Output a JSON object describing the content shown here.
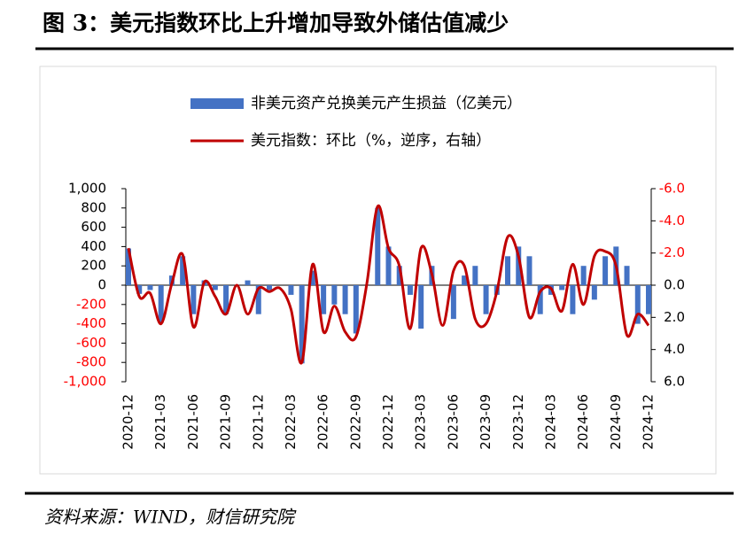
{
  "chart_data": {
    "type": "bar_line",
    "title": "图 3：美元指数环比上升增加导致外储估值减少",
    "source": "资料来源：WIND，财信研究院",
    "categories": [
      "2020-12",
      null,
      null,
      "2021-03",
      null,
      null,
      "2021-06",
      null,
      null,
      "2021-09",
      null,
      null,
      "2021-12",
      null,
      null,
      "2022-03",
      null,
      null,
      "2022-06",
      null,
      null,
      "2022-09",
      null,
      null,
      "2022-12",
      null,
      null,
      "2023-03",
      null,
      null,
      "2023-06",
      null,
      null,
      "2023-09",
      null,
      null,
      "2023-12",
      null,
      null,
      "2024-03",
      null,
      null,
      "2024-06",
      null,
      null,
      "2024-09",
      null,
      null,
      "2024-12"
    ],
    "series": [
      {
        "name": "非美元资产兑换美元产生损益（亿美元）",
        "color": "#4472c4",
        "kind": "bar",
        "values": [
          380,
          -90,
          -50,
          -390,
          100,
          300,
          -300,
          50,
          -50,
          -300,
          0,
          50,
          -300,
          -50,
          0,
          -100,
          -810,
          150,
          -300,
          -200,
          -300,
          -500,
          0,
          800,
          400,
          200,
          -100,
          -450,
          200,
          0,
          -350,
          100,
          200,
          -300,
          -100,
          300,
          400,
          300,
          -300,
          -100,
          -50,
          -300,
          200,
          -150,
          300,
          400,
          200,
          -400,
          -300
        ]
      },
      {
        "name": "美元指数：环比（%，逆序，右轴）",
        "color": "#c00000",
        "kind": "line",
        "axis": "y2",
        "values": [
          -2.3,
          0.7,
          0.5,
          2.4,
          -0.1,
          -1.9,
          2.6,
          -0.2,
          0.7,
          1.8,
          0,
          1.8,
          0.2,
          0.4,
          0.2,
          1.5,
          4.8,
          -1.3,
          2.9,
          1.3,
          2.9,
          3.2,
          -0.1,
          -4.9,
          -2.3,
          -1.2,
          2.7,
          -2.3,
          -0.7,
          2.5,
          -0.9,
          -1.2,
          2.1,
          2.4,
          0.4,
          -3.0,
          -1.8,
          2.0,
          0.4,
          0.2,
          1.6,
          -1.3,
          1.2,
          -1.8,
          -2.1,
          -1.2,
          3.1,
          1.8,
          2.5
        ]
      }
    ],
    "ylim": [
      -1000,
      1000
    ],
    "yticks": [
      {
        "value": -1000,
        "label": "-1,000"
      },
      -800,
      -600,
      -400,
      -200,
      0,
      200,
      400,
      600,
      800,
      {
        "value": 1000,
        "label": "1,000"
      }
    ],
    "y2lim": [
      6,
      -6
    ],
    "y2ticks": [
      {
        "value": 6,
        "label": "6.0"
      },
      {
        "value": 4,
        "label": "4.0"
      },
      {
        "value": 2,
        "label": "2.0"
      },
      {
        "value": 0,
        "label": "0.0"
      },
      {
        "value": -2,
        "label": "-2.0"
      },
      {
        "value": -4,
        "label": "-4.0"
      },
      {
        "value": -6,
        "label": "-6.0"
      }
    ],
    "negative_label_color": "#ff0000",
    "legend": "top"
  }
}
